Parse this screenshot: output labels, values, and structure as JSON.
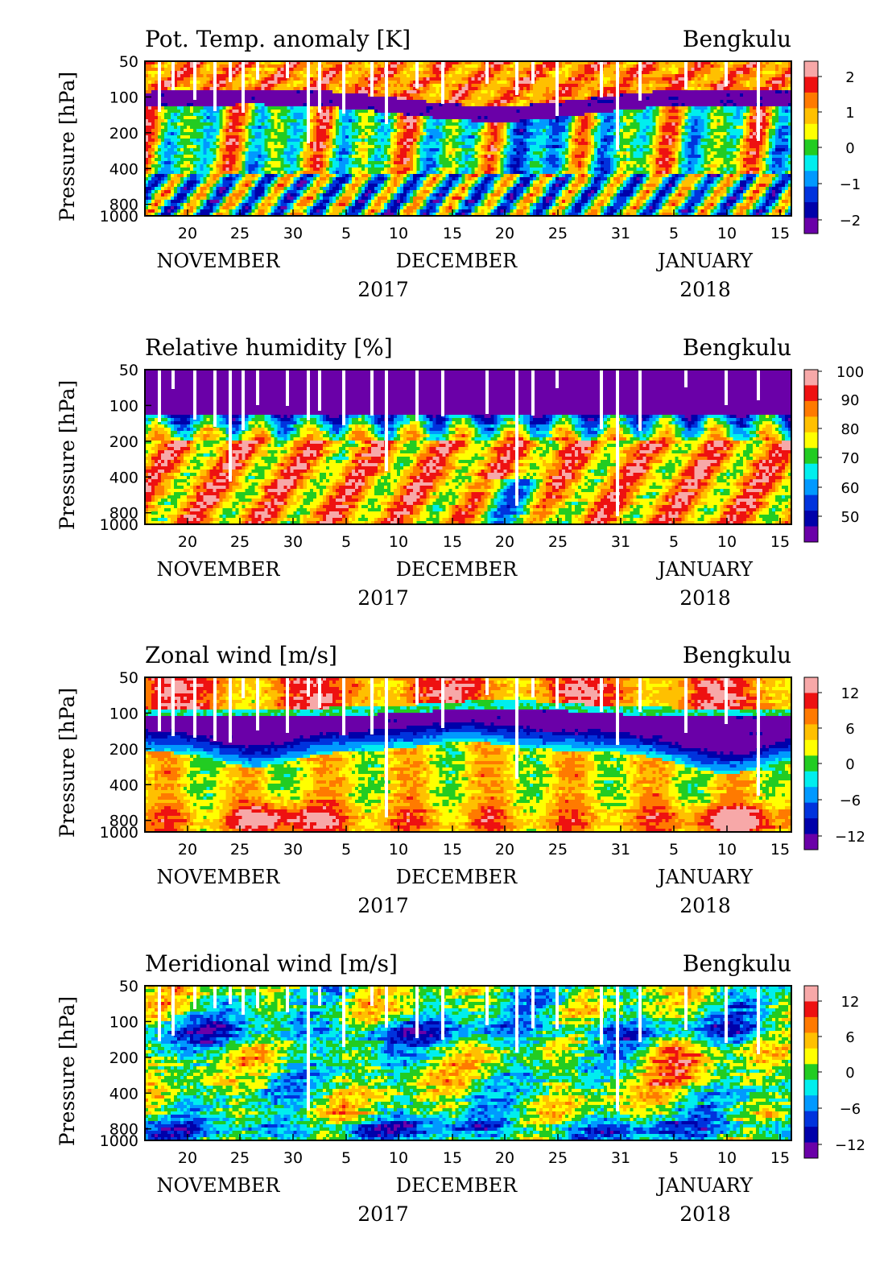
{
  "chart_data": [
    {
      "type": "heatmap",
      "title": "Pot. Temp. anomaly [K]",
      "station": "Bengkulu",
      "ylabel": "Pressure [hPa]",
      "y_ticks": [
        "50",
        "100",
        "200",
        "400",
        "800",
        "1000"
      ],
      "x_ticks": [
        "20",
        "25",
        "30",
        "5",
        "10",
        "15",
        "20",
        "25",
        "31",
        "5",
        "10",
        "15"
      ],
      "months": [
        "NOVEMBER",
        "DECEMBER",
        "JANUARY"
      ],
      "years": [
        "2017",
        "2018"
      ],
      "colorbar": {
        "labels": [
          "2",
          "1",
          "0",
          "−1",
          "−2"
        ],
        "range": [
          -2.5,
          2.5
        ]
      },
      "colors": [
        "#f7a8a8",
        "#ee1111",
        "#ff7a00",
        "#ffc000",
        "#ffff00",
        "#22cc22",
        "#00eeee",
        "#0099ff",
        "#0033dd",
        "#0000aa",
        "#6a00a8"
      ]
    },
    {
      "type": "heatmap",
      "title": "Relative humidity [%]",
      "station": "Bengkulu",
      "ylabel": "Pressure [hPa]",
      "y_ticks": [
        "50",
        "100",
        "200",
        "400",
        "800",
        "1000"
      ],
      "x_ticks": [
        "20",
        "25",
        "30",
        "5",
        "10",
        "15",
        "20",
        "25",
        "31",
        "5",
        "10",
        "15"
      ],
      "months": [
        "NOVEMBER",
        "DECEMBER",
        "JANUARY"
      ],
      "years": [
        "2017",
        "2018"
      ],
      "colorbar": {
        "labels": [
          "100",
          "90",
          "80",
          "70",
          "60",
          "50"
        ],
        "range": [
          45,
          100
        ]
      },
      "colors": [
        "#f7a8a8",
        "#ee1111",
        "#ff7a00",
        "#ffc000",
        "#ffff00",
        "#22cc22",
        "#00eeee",
        "#0099ff",
        "#0033dd",
        "#0000aa",
        "#6a00a8"
      ]
    },
    {
      "type": "heatmap",
      "title": "Zonal wind [m/s]",
      "station": "Bengkulu",
      "ylabel": "Pressure [hPa]",
      "y_ticks": [
        "50",
        "100",
        "200",
        "400",
        "800",
        "1000"
      ],
      "x_ticks": [
        "20",
        "25",
        "30",
        "5",
        "10",
        "15",
        "20",
        "25",
        "31",
        "5",
        "10",
        "15"
      ],
      "months": [
        "NOVEMBER",
        "DECEMBER",
        "JANUARY"
      ],
      "years": [
        "2017",
        "2018"
      ],
      "colorbar": {
        "labels": [
          "12",
          "6",
          "0",
          "−6",
          "−12"
        ],
        "range": [
          -15,
          15
        ]
      },
      "colors": [
        "#f7a8a8",
        "#ee1111",
        "#ff7a00",
        "#ffc000",
        "#ffff00",
        "#22cc22",
        "#00eeee",
        "#0099ff",
        "#0033dd",
        "#0000aa",
        "#6a00a8"
      ]
    },
    {
      "type": "heatmap",
      "title": "Meridional wind [m/s]",
      "station": "Bengkulu",
      "ylabel": "Pressure [hPa]",
      "y_ticks": [
        "50",
        "100",
        "200",
        "400",
        "800",
        "1000"
      ],
      "x_ticks": [
        "20",
        "25",
        "30",
        "5",
        "10",
        "15",
        "20",
        "25",
        "31",
        "5",
        "10",
        "15"
      ],
      "months": [
        "NOVEMBER",
        "DECEMBER",
        "JANUARY"
      ],
      "years": [
        "2017",
        "2018"
      ],
      "colorbar": {
        "labels": [
          "12",
          "6",
          "0",
          "−6",
          "−12"
        ],
        "range": [
          -15,
          15
        ]
      },
      "colors": [
        "#f7a8a8",
        "#ee1111",
        "#ff7a00",
        "#ffc000",
        "#ffff00",
        "#22cc22",
        "#00eeee",
        "#0099ff",
        "#0033dd",
        "#0000aa",
        "#6a00a8"
      ]
    }
  ]
}
